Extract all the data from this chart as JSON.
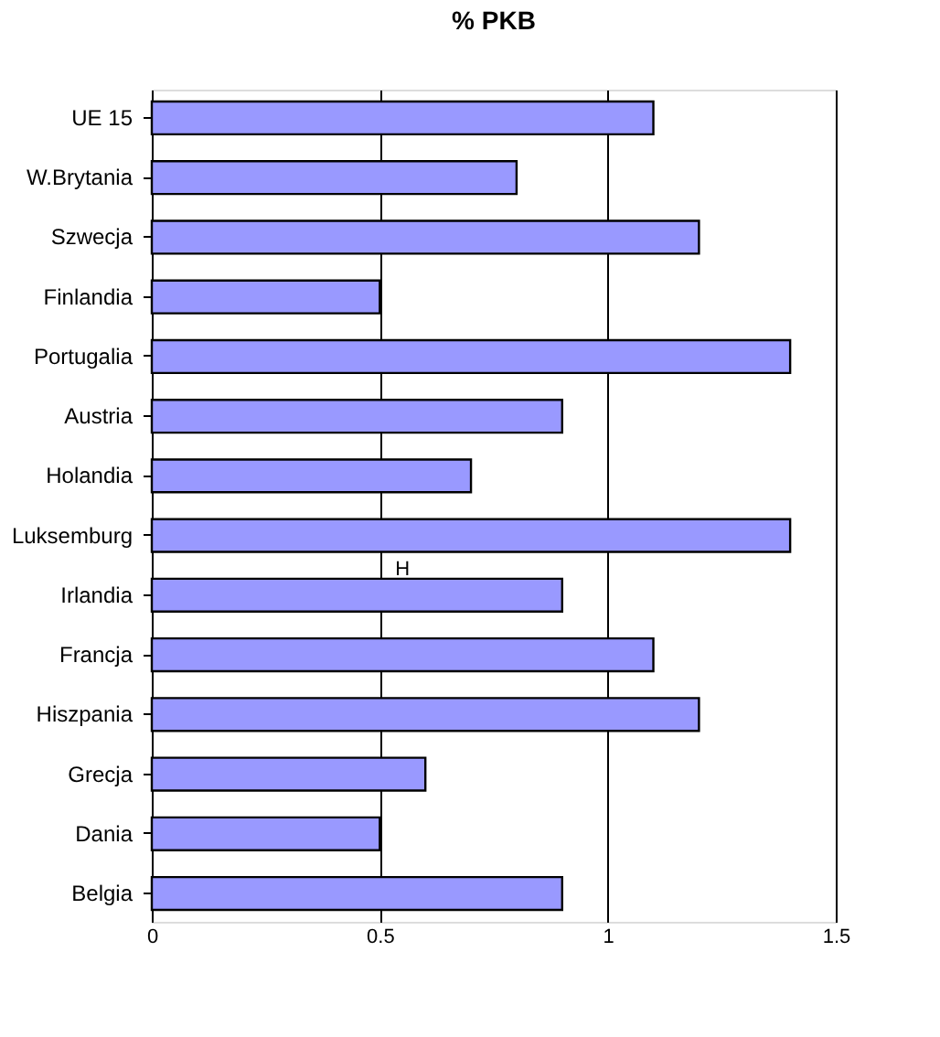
{
  "chart_data": {
    "type": "bar",
    "orientation": "horizontal",
    "title": "% PKB",
    "categories": [
      "UE 15",
      "W.Brytania",
      "Szwecja",
      "Finlandia",
      "Portugalia",
      "Austria",
      "Holandia",
      "Luksemburg",
      "Irlandia",
      "Francja",
      "Hiszpania",
      "Grecja",
      "Dania",
      "Belgia"
    ],
    "values": [
      1.1,
      0.8,
      1.2,
      0.5,
      1.4,
      0.9,
      0.7,
      1.4,
      0.9,
      1.1,
      1.2,
      0.6,
      0.5,
      0.9
    ],
    "color": "#9999ff",
    "xlim": [
      0,
      1.5
    ],
    "xticks": [
      0,
      0.5,
      1,
      1.5
    ],
    "grid": "x",
    "annotations": [
      {
        "text": "H",
        "x": 0.55,
        "y": "Irlandia"
      }
    ]
  }
}
